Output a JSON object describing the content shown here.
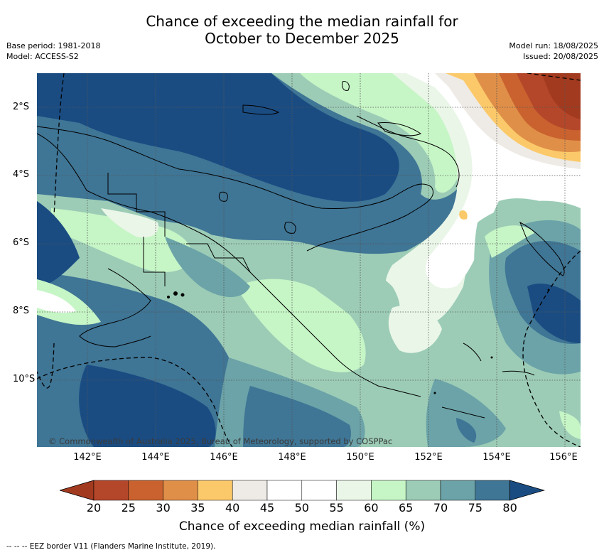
{
  "title_line1": "Chance of exceeding the median rainfall for",
  "title_line2": "October to December 2025",
  "meta": {
    "base_period": "Base period: 1981-2018",
    "model": "Model: ACCESS-S2",
    "model_run": "Model run: 18/08/2025",
    "issued": "Issued: 20/08/2025"
  },
  "map": {
    "y_ticks": [
      "2°S",
      "4°S",
      "6°S",
      "8°S",
      "10°S"
    ],
    "x_ticks": [
      "142°E",
      "144°E",
      "146°E",
      "148°E",
      "150°E",
      "152°E",
      "154°E",
      "156°E"
    ],
    "copyright": "© Commonwealth of Australia 2025, Bureau of Meteorology, supported by COSPPac"
  },
  "colorbar": {
    "ticks": [
      "20",
      "25",
      "30",
      "35",
      "40",
      "45",
      "50",
      "55",
      "60",
      "65",
      "70",
      "75",
      "80"
    ],
    "colors": [
      "#a23a1f",
      "#b4472a",
      "#c9622f",
      "#e08f48",
      "#fbc96a",
      "#eeebe6",
      "#ffffff",
      "#ffffff",
      "#eaf6e8",
      "#c6f5c6",
      "#9cccb6",
      "#6ba3a8",
      "#3f7595",
      "#1a4c82"
    ],
    "label": "Chance of exceeding median rainfall (%)"
  },
  "legend_note": "--  --  -- EEZ border V11 (Flanders Marine Institute, 2019)."
}
